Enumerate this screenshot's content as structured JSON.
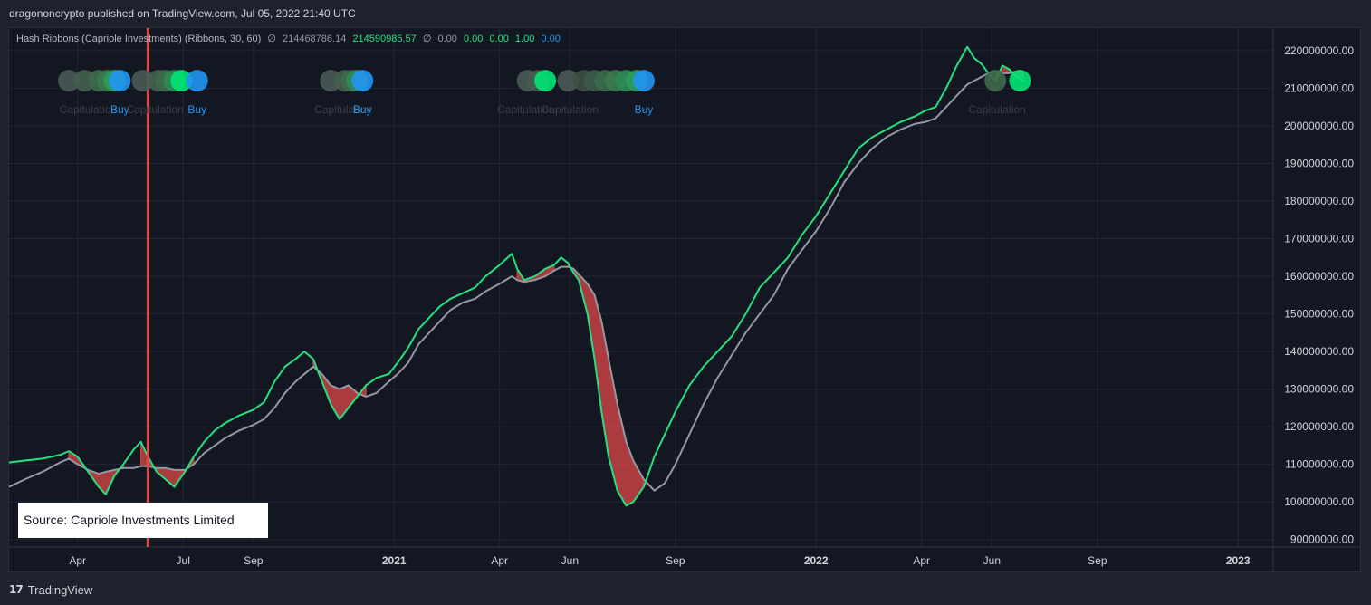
{
  "header": {
    "published": "dragononcrypto published on TradingView.com, Jul 05, 2022 21:40 UTC"
  },
  "legend": {
    "name": "Hash Ribbons (Capriole Investments) (Ribbons, 30, 60)",
    "symbol": "∅",
    "v1": "214468786.14",
    "v2": "214590985.57",
    "symbol2": "∅",
    "v3": "0.00",
    "v4": "0.00",
    "v5": "0.00",
    "v6": "1.00",
    "v7": "0.00"
  },
  "source_box": "Source: Capriole Investments Limited",
  "footer": {
    "logo": "17",
    "brand": "TradingView"
  },
  "colors": {
    "background": "#131722",
    "fast_line": "#26e07f",
    "slow_line": "#9598a1",
    "ribbon_fill": "#e0484a",
    "buy": "#2196f3",
    "capitulation_green": "#00e676",
    "vline": "#e0484a"
  },
  "chart_data": {
    "type": "line",
    "y_axis": {
      "ticks": [
        "220000000.00",
        "210000000.00",
        "200000000.00",
        "190000000.00",
        "180000000.00",
        "170000000.00",
        "160000000.00",
        "150000000.00",
        "140000000.00",
        "130000000.00",
        "120000000.00",
        "110000000.00",
        "100000000.00",
        "90000000.00"
      ],
      "ylim": [
        88000000,
        226000000
      ]
    },
    "x_axis": {
      "ticks": [
        {
          "label": "Apr",
          "month": 3.0,
          "bold": false
        },
        {
          "label": "Jul",
          "month": 6.0,
          "bold": false
        },
        {
          "label": "Sep",
          "month": 8.0,
          "bold": false
        },
        {
          "label": "2021",
          "month": 12.0,
          "bold": true
        },
        {
          "label": "Apr",
          "month": 15.0,
          "bold": false
        },
        {
          "label": "Jun",
          "month": 17.0,
          "bold": false
        },
        {
          "label": "Sep",
          "month": 20.0,
          "bold": false
        },
        {
          "label": "2022",
          "month": 24.0,
          "bold": true
        },
        {
          "label": "Apr",
          "month": 27.0,
          "bold": false
        },
        {
          "label": "Jun",
          "month": 29.0,
          "bold": false
        },
        {
          "label": "Sep",
          "month": 32.0,
          "bold": false
        },
        {
          "label": "2023",
          "month": 36.0,
          "bold": true
        }
      ],
      "xlim": [
        1.05,
        37.0
      ]
    },
    "series": [
      {
        "key": "fast",
        "points": [
          [
            1.05,
            110.5
          ],
          [
            1.5,
            111
          ],
          [
            2.0,
            111.5
          ],
          [
            2.5,
            112.5
          ],
          [
            2.75,
            113.5
          ],
          [
            3.0,
            112
          ],
          [
            3.3,
            108
          ],
          [
            3.6,
            104
          ],
          [
            3.8,
            102
          ],
          [
            4.05,
            107
          ],
          [
            4.3,
            110
          ],
          [
            4.6,
            114
          ],
          [
            4.8,
            116
          ],
          [
            5.0,
            112
          ],
          [
            5.25,
            108
          ],
          [
            5.5,
            106
          ],
          [
            5.75,
            104
          ],
          [
            6.05,
            108
          ],
          [
            6.3,
            112
          ],
          [
            6.6,
            116
          ],
          [
            6.9,
            119
          ],
          [
            7.2,
            121
          ],
          [
            7.6,
            123
          ],
          [
            8.0,
            124.5
          ],
          [
            8.3,
            126.5
          ],
          [
            8.6,
            132
          ],
          [
            8.9,
            136
          ],
          [
            9.2,
            138
          ],
          [
            9.45,
            140
          ],
          [
            9.7,
            138
          ],
          [
            9.95,
            132
          ],
          [
            10.2,
            126
          ],
          [
            10.45,
            122
          ],
          [
            10.7,
            125
          ],
          [
            10.95,
            128
          ],
          [
            11.2,
            131
          ],
          [
            11.5,
            133
          ],
          [
            11.85,
            134
          ],
          [
            12.1,
            137
          ],
          [
            12.4,
            141
          ],
          [
            12.7,
            146
          ],
          [
            13.0,
            149
          ],
          [
            13.3,
            152
          ],
          [
            13.6,
            154
          ],
          [
            13.95,
            155.5
          ],
          [
            14.3,
            157
          ],
          [
            14.6,
            160
          ],
          [
            15.0,
            163
          ],
          [
            15.35,
            166
          ],
          [
            15.5,
            162
          ],
          [
            15.7,
            159
          ],
          [
            16.0,
            160
          ],
          [
            16.3,
            162
          ],
          [
            16.55,
            163
          ],
          [
            16.75,
            165
          ],
          [
            16.95,
            163.5
          ],
          [
            17.1,
            161
          ],
          [
            17.25,
            159
          ],
          [
            17.5,
            150
          ],
          [
            17.7,
            138
          ],
          [
            17.9,
            124
          ],
          [
            18.1,
            112
          ],
          [
            18.35,
            103
          ],
          [
            18.6,
            99
          ],
          [
            18.8,
            100
          ],
          [
            19.1,
            104
          ],
          [
            19.4,
            112
          ],
          [
            19.7,
            118
          ],
          [
            20.0,
            124
          ],
          [
            20.4,
            131
          ],
          [
            20.8,
            136
          ],
          [
            21.2,
            140
          ],
          [
            21.6,
            144
          ],
          [
            22.0,
            150
          ],
          [
            22.4,
            157
          ],
          [
            22.8,
            161
          ],
          [
            23.2,
            165
          ],
          [
            23.6,
            171
          ],
          [
            24.0,
            176
          ],
          [
            24.4,
            182
          ],
          [
            24.8,
            188
          ],
          [
            25.2,
            194
          ],
          [
            25.6,
            197
          ],
          [
            26.0,
            199
          ],
          [
            26.4,
            201
          ],
          [
            26.8,
            202.5
          ],
          [
            27.1,
            204
          ],
          [
            27.4,
            205
          ],
          [
            27.7,
            210
          ],
          [
            28.0,
            216
          ],
          [
            28.3,
            221
          ],
          [
            28.5,
            218
          ],
          [
            28.7,
            216.5
          ],
          [
            28.9,
            214
          ],
          [
            29.1,
            212
          ],
          [
            29.3,
            216
          ],
          [
            29.5,
            215
          ],
          [
            29.7,
            213
          ],
          [
            29.9,
            212
          ]
        ]
      },
      {
        "key": "slow",
        "points": [
          [
            1.05,
            104
          ],
          [
            1.5,
            106
          ],
          [
            2.0,
            108
          ],
          [
            2.5,
            110.5
          ],
          [
            2.75,
            111.5
          ],
          [
            3.0,
            110
          ],
          [
            3.3,
            108.5
          ],
          [
            3.6,
            107.5
          ],
          [
            3.8,
            108
          ],
          [
            4.05,
            108.5
          ],
          [
            4.3,
            109
          ],
          [
            4.6,
            109
          ],
          [
            4.8,
            109.5
          ],
          [
            5.0,
            109.5
          ],
          [
            5.25,
            109
          ],
          [
            5.5,
            109
          ],
          [
            5.75,
            108.5
          ],
          [
            6.05,
            108.5
          ],
          [
            6.3,
            110
          ],
          [
            6.6,
            113
          ],
          [
            6.9,
            115
          ],
          [
            7.2,
            117
          ],
          [
            7.6,
            119
          ],
          [
            8.0,
            120.5
          ],
          [
            8.3,
            122
          ],
          [
            8.6,
            125
          ],
          [
            8.9,
            129
          ],
          [
            9.2,
            132
          ],
          [
            9.45,
            134
          ],
          [
            9.7,
            136
          ],
          [
            9.95,
            134
          ],
          [
            10.2,
            131
          ],
          [
            10.45,
            130
          ],
          [
            10.7,
            131
          ],
          [
            10.95,
            129
          ],
          [
            11.2,
            128
          ],
          [
            11.5,
            129
          ],
          [
            11.85,
            132
          ],
          [
            12.1,
            134
          ],
          [
            12.4,
            137
          ],
          [
            12.7,
            142
          ],
          [
            13.0,
            145
          ],
          [
            13.3,
            148
          ],
          [
            13.6,
            151
          ],
          [
            13.95,
            153
          ],
          [
            14.3,
            154
          ],
          [
            14.6,
            156
          ],
          [
            15.0,
            158
          ],
          [
            15.35,
            160
          ],
          [
            15.5,
            159
          ],
          [
            15.7,
            158.5
          ],
          [
            16.0,
            159
          ],
          [
            16.3,
            160
          ],
          [
            16.55,
            161.5
          ],
          [
            16.75,
            162.5
          ],
          [
            16.95,
            162.5
          ],
          [
            17.1,
            162
          ],
          [
            17.25,
            160.5
          ],
          [
            17.5,
            158
          ],
          [
            17.7,
            155
          ],
          [
            17.9,
            148
          ],
          [
            18.1,
            138
          ],
          [
            18.35,
            126
          ],
          [
            18.6,
            116
          ],
          [
            18.8,
            111
          ],
          [
            19.1,
            106
          ],
          [
            19.4,
            103
          ],
          [
            19.7,
            105
          ],
          [
            20.0,
            110
          ],
          [
            20.4,
            118
          ],
          [
            20.8,
            126
          ],
          [
            21.2,
            133
          ],
          [
            21.6,
            139
          ],
          [
            22.0,
            145
          ],
          [
            22.4,
            150
          ],
          [
            22.8,
            155
          ],
          [
            23.2,
            162
          ],
          [
            23.6,
            167
          ],
          [
            24.0,
            172
          ],
          [
            24.4,
            178
          ],
          [
            24.8,
            185
          ],
          [
            25.2,
            190
          ],
          [
            25.6,
            194
          ],
          [
            26.0,
            197
          ],
          [
            26.4,
            199
          ],
          [
            26.8,
            200.5
          ],
          [
            27.1,
            201
          ],
          [
            27.4,
            202
          ],
          [
            27.7,
            205
          ],
          [
            28.0,
            208
          ],
          [
            28.3,
            211
          ],
          [
            28.5,
            212
          ],
          [
            28.7,
            213
          ],
          [
            28.9,
            214
          ],
          [
            29.1,
            214.5
          ],
          [
            29.3,
            214
          ],
          [
            29.5,
            214
          ],
          [
            29.7,
            214.5
          ],
          [
            29.9,
            214.5
          ]
        ]
      }
    ],
    "capitulation_regions": [
      [
        2.75,
        4.3
      ],
      [
        4.8,
        6.3
      ],
      [
        9.7,
        11.2
      ],
      [
        15.5,
        16.55
      ],
      [
        16.95,
        19.1
      ],
      [
        29.1,
        29.9
      ]
    ],
    "vertical_line_month": 5.0,
    "markers": {
      "y_value": 212,
      "groups": [
        {
          "dots": [
            {
              "m": 2.75,
              "c": "#4a5a58"
            },
            {
              "m": 3.2,
              "c": "#445f4f"
            },
            {
              "m": 3.6,
              "c": "#3e6a4d"
            },
            {
              "m": 3.85,
              "c": "#3a7a4e"
            },
            {
              "m": 4.05,
              "c": "#2c9c5a"
            },
            {
              "m": 4.2,
              "c": "#2196f3"
            }
          ],
          "capitulation": {
            "m": 3.3,
            "text": "Capitulation"
          },
          "buy": {
            "m": 4.2,
            "text": "Buy"
          }
        },
        {
          "dots": [
            {
              "m": 4.85,
              "c": "#4a5a58"
            },
            {
              "m": 5.3,
              "c": "#445f4f"
            },
            {
              "m": 5.5,
              "c": "#3e6a4d"
            },
            {
              "m": 5.75,
              "c": "#2c8c55"
            },
            {
              "m": 5.95,
              "c": "#00e676"
            },
            {
              "m": 6.4,
              "c": "#2196f3"
            }
          ],
          "capitulation": {
            "m": 5.2,
            "text": "Capitulation"
          },
          "buy": {
            "m": 6.4,
            "text": "Buy"
          }
        },
        {
          "dots": [
            {
              "m": 10.2,
              "c": "#4a5a58"
            },
            {
              "m": 10.6,
              "c": "#445f4f"
            },
            {
              "m": 10.8,
              "c": "#3e6a4d"
            },
            {
              "m": 10.95,
              "c": "#2c8c55"
            },
            {
              "m": 11.1,
              "c": "#2196f3"
            }
          ],
          "capitulation": {
            "m": 10.55,
            "text": "Capitulation"
          },
          "buy": {
            "m": 11.1,
            "text": "Buy"
          }
        },
        {
          "dots": [
            {
              "m": 15.8,
              "c": "#4a5a58"
            },
            {
              "m": 16.1,
              "c": "#445f4f"
            },
            {
              "m": 16.3,
              "c": "#00e676"
            }
          ],
          "capitulation": {
            "m": 15.75,
            "text": "Capitulation"
          }
        },
        {
          "dots": [
            {
              "m": 16.95,
              "c": "#4a5a58"
            },
            {
              "m": 17.4,
              "c": "#3e4f45"
            },
            {
              "m": 17.7,
              "c": "#3a5a48"
            },
            {
              "m": 18.0,
              "c": "#3a6a4b"
            },
            {
              "m": 18.3,
              "c": "#3a7a4e"
            },
            {
              "m": 18.6,
              "c": "#2c8c55"
            },
            {
              "m": 18.9,
              "c": "#2c9c5a"
            },
            {
              "m": 19.1,
              "c": "#2196f3"
            }
          ],
          "capitulation": {
            "m": 17.0,
            "text": "Capitulation"
          },
          "buy": {
            "m": 19.1,
            "text": "Buy"
          }
        },
        {
          "dots": [
            {
              "m": 29.1,
              "c": "#3e6a4d"
            },
            {
              "m": 29.8,
              "c": "#00e676"
            }
          ],
          "capitulation": {
            "m": 29.15,
            "text": "Capitulation"
          }
        }
      ]
    }
  }
}
